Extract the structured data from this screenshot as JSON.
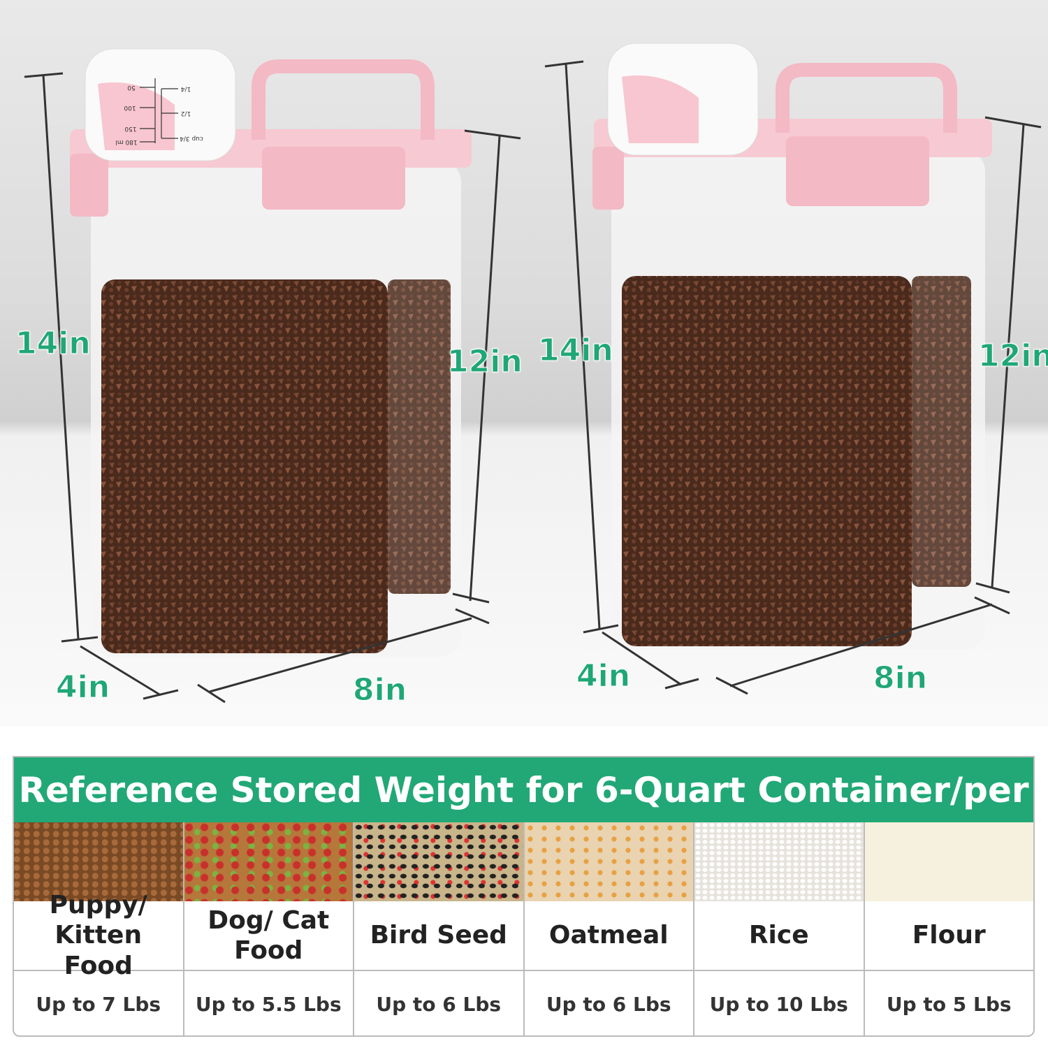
{
  "dimensions": {
    "left": {
      "height": "14in",
      "back_height": "12in",
      "depth": "4in",
      "width": "8in"
    },
    "right": {
      "height": "14in",
      "back_height": "12in",
      "depth": "4in",
      "width": "8in"
    }
  },
  "measuring_cup": {
    "ml_marks": [
      "50",
      "100",
      "150",
      "180 ml"
    ],
    "cup_marks": [
      "1/4",
      "1/2",
      "cup 3/4"
    ]
  },
  "colors": {
    "accent": "#21a876",
    "lid": "#f4c2cc",
    "kibble": "#5a3322"
  },
  "table": {
    "title": "Reference Stored Weight for 6-Quart Container/per",
    "items": [
      {
        "name": "Puppy/ Kitten Food",
        "capacity": "Up to 7 Lbs"
      },
      {
        "name": "Dog/ Cat Food",
        "capacity": "Up to 5.5 Lbs"
      },
      {
        "name": "Bird Seed",
        "capacity": "Up to 6 Lbs"
      },
      {
        "name": "Oatmeal",
        "capacity": "Up to 6 Lbs"
      },
      {
        "name": "Rice",
        "capacity": "Up to 10 Lbs"
      },
      {
        "name": "Flour",
        "capacity": "Up to 5 Lbs"
      }
    ]
  }
}
